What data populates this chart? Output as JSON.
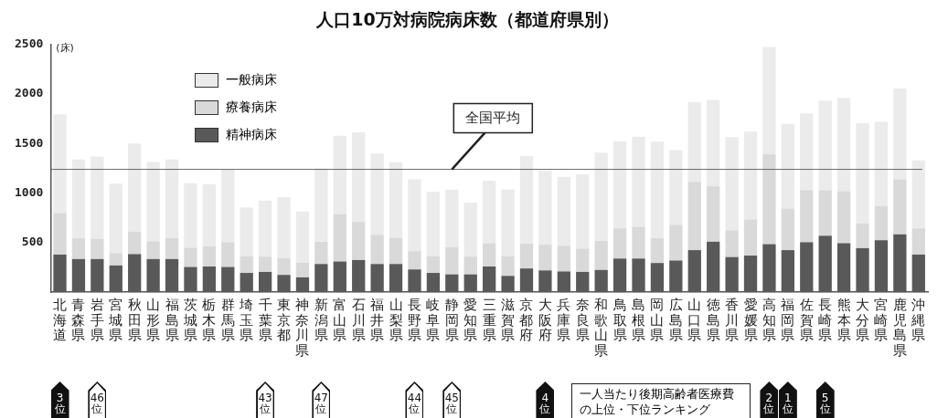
{
  "chart_data": {
    "type": "bar",
    "title": "人口10万対病院病床数（都道府県別）",
    "ylabel": "(床)",
    "stacked": true,
    "categories": [
      "北海道",
      "青森県",
      "岩手県",
      "宮城県",
      "秋田県",
      "山形県",
      "福島県",
      "茨城県",
      "栃木県",
      "群馬県",
      "埼玉県",
      "千葉県",
      "東京都",
      "神奈川県",
      "新潟県",
      "富山県",
      "石川県",
      "福井県",
      "山梨県",
      "長野県",
      "岐阜県",
      "静岡県",
      "愛知県",
      "三重県",
      "滋賀県",
      "京都府",
      "大阪府",
      "兵庫県",
      "奈良県",
      "和歌山県",
      "鳥取県",
      "島根県",
      "岡山県",
      "広島県",
      "山口県",
      "徳島県",
      "香川県",
      "愛媛県",
      "高知県",
      "福岡県",
      "佐賀県",
      "長崎県",
      "熊本県",
      "大分県",
      "宮崎県",
      "鹿児島県",
      "沖縄県"
    ],
    "series": [
      {
        "name": "精神病床",
        "color": "#595959",
        "values": [
          380,
          335,
          335,
          270,
          385,
          335,
          335,
          255,
          260,
          255,
          195,
          205,
          175,
          150,
          285,
          310,
          325,
          285,
          285,
          230,
          195,
          180,
          180,
          260,
          165,
          240,
          220,
          210,
          205,
          225,
          340,
          340,
          295,
          320,
          425,
          510,
          355,
          370,
          485,
          425,
          505,
          570,
          495,
          445,
          525,
          585,
          380
        ]
      },
      {
        "name": "療養病床",
        "color": "#d9d9d9",
        "values": [
          420,
          210,
          205,
          125,
          225,
          180,
          210,
          195,
          205,
          250,
          170,
          155,
          170,
          150,
          225,
          480,
          385,
          295,
          265,
          185,
          170,
          275,
          180,
          235,
          200,
          250,
          260,
          260,
          235,
          295,
          305,
          320,
          250,
          360,
          690,
          560,
          270,
          365,
          910,
          420,
          525,
          460,
          525,
          250,
          345,
          555,
          265
        ]
      },
      {
        "name": "一般病床",
        "color": "#ebebeb",
        "values": [
          995,
          795,
          830,
          700,
          890,
          800,
          795,
          650,
          625,
          740,
          490,
          565,
          615,
          515,
          740,
          790,
          905,
          820,
          760,
          725,
          650,
          580,
          545,
          630,
          670,
          885,
          745,
          695,
          750,
          890,
          880,
          910,
          975,
          755,
          805,
          870,
          940,
          885,
          1080,
          855,
          775,
          905,
          940,
          1010,
          850,
          915,
          685
        ]
      }
    ],
    "ylim": [
      0,
      2500
    ],
    "yticks": [
      500,
      1000,
      1500,
      2000,
      2500
    ],
    "grid": false,
    "legend": "top left",
    "ref_lines": [
      {
        "axis": "y",
        "value": 1240,
        "label": "全国平均"
      }
    ],
    "annotations": [
      "3位",
      "46位",
      "43位",
      "47位",
      "44位",
      "45位",
      "4位",
      "2位",
      "1位",
      "5位",
      "一人当たり後期高齢者医療費の上位・下位ランキング"
    ]
  }
}
